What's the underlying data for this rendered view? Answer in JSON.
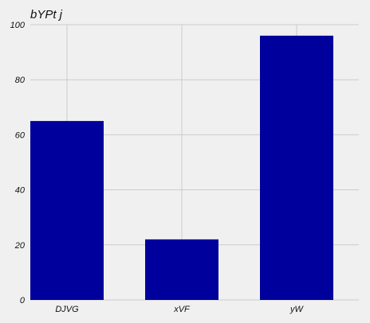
{
  "chart_data": {
    "type": "bar",
    "title": "bYPt j",
    "xlabel": "",
    "ylabel": "",
    "categories": [
      "DJVG",
      "xVF",
      "yW"
    ],
    "values": [
      65,
      22,
      96
    ],
    "ylim": [
      0,
      100
    ],
    "yticks": [
      0,
      20,
      40,
      60,
      80,
      100
    ],
    "grid": true,
    "bar_color": "#00009c",
    "grid_color": "#cbcbcb",
    "background_color": "#f0f0f0"
  }
}
